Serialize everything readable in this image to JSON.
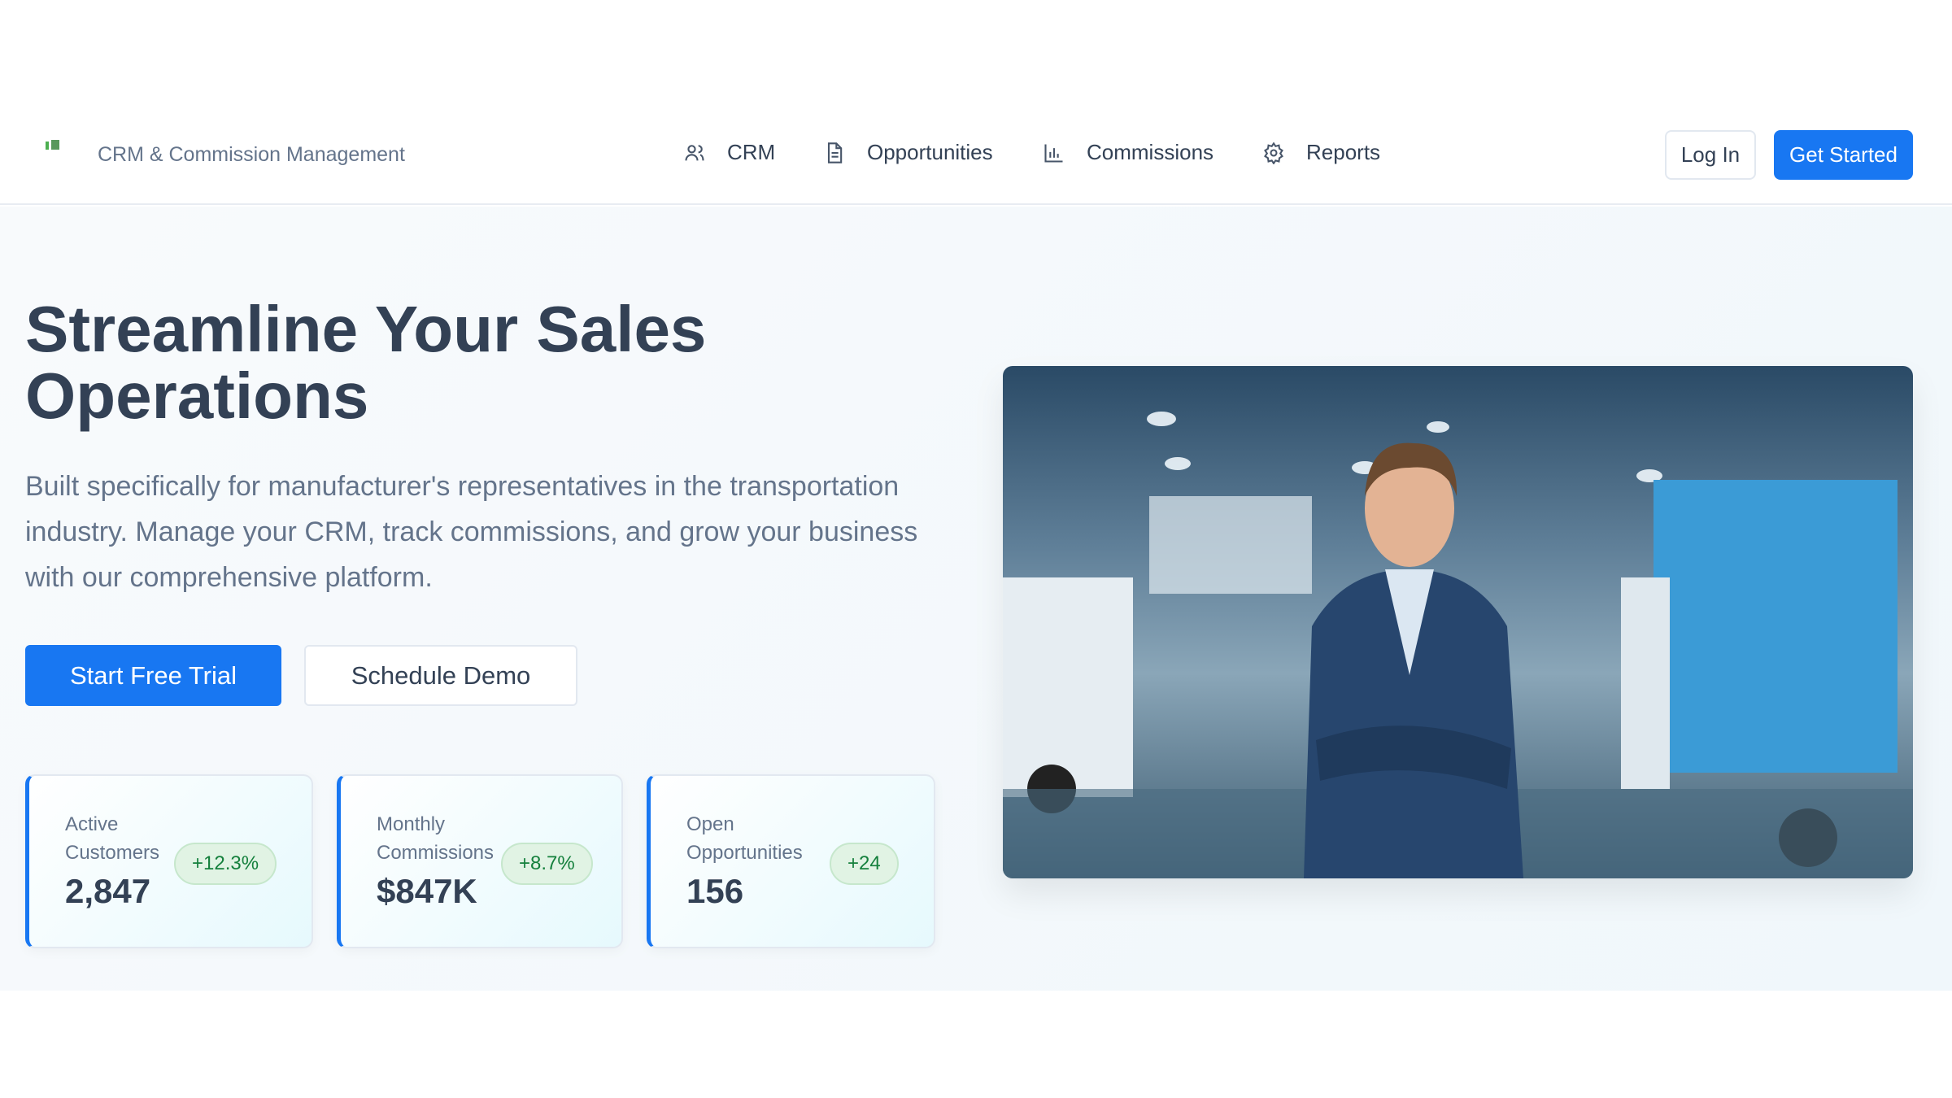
{
  "header": {
    "brand": "CRM & Commission Management",
    "nav": [
      {
        "label": "CRM",
        "icon": "users-icon"
      },
      {
        "label": "Opportunities",
        "icon": "document-icon"
      },
      {
        "label": "Commissions",
        "icon": "bar-chart-icon"
      },
      {
        "label": "Reports",
        "icon": "gear-icon"
      }
    ],
    "login": "Log In",
    "get_started": "Get Started"
  },
  "hero": {
    "title": "Streamline Your Sales Operations",
    "description": "Built specifically for manufacturer's representatives in the transportation industry. Manage your CRM, track commissions, and grow your business with our comprehensive platform.",
    "primary_cta": "Start Free Trial",
    "secondary_cta": "Schedule Demo",
    "stats": [
      {
        "label": "Active Customers",
        "value": "2,847",
        "change": "+12.3%"
      },
      {
        "label": "Monthly Commissions",
        "value": "$847K",
        "change": "+8.7%"
      },
      {
        "label": "Open Opportunities",
        "value": "156",
        "change": "+24"
      }
    ]
  },
  "colors": {
    "accent": "#1877f2",
    "positive": "#15803d"
  }
}
